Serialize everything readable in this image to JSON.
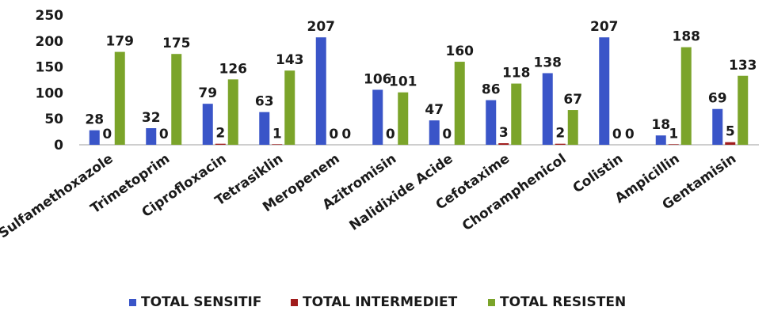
{
  "chart_data": {
    "type": "bar",
    "title": "",
    "xlabel": "",
    "ylabel": "",
    "ylim": [
      0,
      250
    ],
    "yticks": [
      0,
      50,
      100,
      150,
      200,
      250
    ],
    "grid": false,
    "legend_position": "bottom",
    "categories": [
      "Sulfamethoxazole",
      "Trimetoprim",
      "Ciprofloxacin",
      "Tetrasiklin",
      "Meropenem",
      "Azitromisin",
      "Nalidixide Acide",
      "Cefotaxime",
      "Choramphenicol",
      "Colistin",
      "Ampicillin",
      "Gentamisin"
    ],
    "series": [
      {
        "name": "TOTAL SENSITIF",
        "color": "#3a55c8",
        "values": [
          28,
          32,
          79,
          63,
          207,
          106,
          47,
          86,
          138,
          207,
          18,
          69
        ]
      },
      {
        "name": "TOTAL INTERMEDIET",
        "color": "#a01c1c",
        "values": [
          0,
          0,
          2,
          1,
          0,
          0,
          0,
          3,
          2,
          0,
          1,
          5
        ]
      },
      {
        "name": "TOTAL RESISTEN",
        "color": "#7ba42a",
        "values": [
          179,
          175,
          126,
          143,
          0,
          101,
          160,
          118,
          67,
          0,
          188,
          133
        ]
      }
    ]
  }
}
